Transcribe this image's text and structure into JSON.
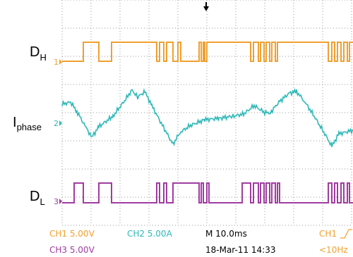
{
  "labels": {
    "dh": {
      "main": "D",
      "sub": "H"
    },
    "iphase": {
      "main": "I",
      "sub": "phase"
    },
    "dl": {
      "main": "D",
      "sub": "L"
    }
  },
  "markers": [
    "1",
    "2",
    "3"
  ],
  "status": {
    "ch1": "CH1 5.00V",
    "ch2": "CH2 5.00A",
    "time": "M 10.0ms",
    "trigger": "CH1",
    "ch3": "CH3 5.00V",
    "date": "18-Mar-11 14:33",
    "freq": "<10Hz"
  }
}
